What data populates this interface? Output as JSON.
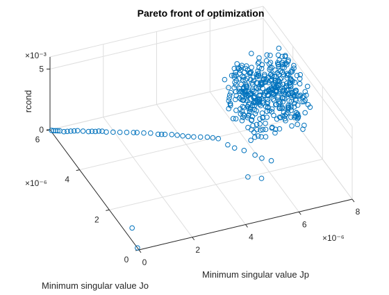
{
  "chart_data": {
    "type": "scatter",
    "title": "Pareto front of optimization",
    "xlabel": "Minimum singular value Jp",
    "ylabel": "Minimum singular value Jo",
    "zlabel": "rcond",
    "x_exponent": "×10⁻⁶",
    "y_exponent": "×10⁻⁶",
    "z_exponent": "×10⁻³",
    "xlim": [
      0,
      8
    ],
    "ylim": [
      0,
      6
    ],
    "zlim": [
      0,
      6
    ],
    "x_ticks": [
      {
        "value": 0,
        "label": "0"
      },
      {
        "value": 2,
        "label": "2"
      },
      {
        "value": 4,
        "label": "4"
      },
      {
        "value": 6,
        "label": "6"
      },
      {
        "value": 8,
        "label": "8"
      }
    ],
    "y_ticks": [
      {
        "value": 0,
        "label": "0"
      },
      {
        "value": 2,
        "label": "2"
      },
      {
        "value": 4,
        "label": "4"
      },
      {
        "value": 6,
        "label": "6"
      }
    ],
    "z_ticks": [
      {
        "value": 0,
        "label": "0"
      },
      {
        "value": 5,
        "label": "5"
      }
    ],
    "grid": true,
    "marker": "o",
    "series_color": "#0072BD",
    "tail_points": [
      [
        0.0,
        0.1,
        0.0
      ],
      [
        0.3,
        1.0,
        0.0
      ],
      [
        0.0,
        5.9,
        0.12
      ],
      [
        0.05,
        5.85,
        0.15
      ],
      [
        0.1,
        5.8,
        0.2
      ],
      [
        0.15,
        5.75,
        0.25
      ],
      [
        0.2,
        5.7,
        0.3
      ],
      [
        0.3,
        5.6,
        0.35
      ],
      [
        0.4,
        5.55,
        0.4
      ],
      [
        0.5,
        5.5,
        0.45
      ],
      [
        0.6,
        5.45,
        0.5
      ],
      [
        0.7,
        5.4,
        0.55
      ],
      [
        0.85,
        5.3,
        0.6
      ],
      [
        1.0,
        5.2,
        0.65
      ],
      [
        1.1,
        5.15,
        0.7
      ],
      [
        1.2,
        5.1,
        0.72
      ],
      [
        1.3,
        5.05,
        0.78
      ],
      [
        1.4,
        5.0,
        0.8
      ],
      [
        1.5,
        4.9,
        0.85
      ],
      [
        1.7,
        4.8,
        0.9
      ],
      [
        1.9,
        4.7,
        0.95
      ],
      [
        2.1,
        4.6,
        1.0
      ],
      [
        2.3,
        4.5,
        1.05
      ],
      [
        2.4,
        4.45,
        1.08
      ],
      [
        2.6,
        4.35,
        1.1
      ],
      [
        2.8,
        4.25,
        1.15
      ],
      [
        3.0,
        4.1,
        1.2
      ],
      [
        3.1,
        4.05,
        1.22
      ],
      [
        3.2,
        4.0,
        1.25
      ],
      [
        3.4,
        3.9,
        1.3
      ],
      [
        3.55,
        3.8,
        1.33
      ],
      [
        3.7,
        3.7,
        1.36
      ],
      [
        3.85,
        3.6,
        1.4
      ],
      [
        4.0,
        3.5,
        1.45
      ],
      [
        4.2,
        3.4,
        1.5
      ],
      [
        4.4,
        3.3,
        1.55
      ],
      [
        4.55,
        3.2,
        1.58
      ],
      [
        4.7,
        3.1,
        1.6
      ],
      [
        5.0,
        3.0,
        1.1
      ],
      [
        5.2,
        2.9,
        0.9
      ],
      [
        5.5,
        2.8,
        0.7
      ],
      [
        5.8,
        2.6,
        0.5
      ],
      [
        6.0,
        2.5,
        0.3
      ],
      [
        6.3,
        2.4,
        0.1
      ],
      [
        5.2,
        2.0,
        0.0
      ],
      [
        5.6,
        1.8,
        0.0
      ]
    ],
    "cluster": {
      "count": 420,
      "x_range": [
        5.6,
        7.9
      ],
      "y_range": [
        2.5,
        4.5
      ],
      "z_range": [
        1.5,
        5.4
      ]
    }
  }
}
